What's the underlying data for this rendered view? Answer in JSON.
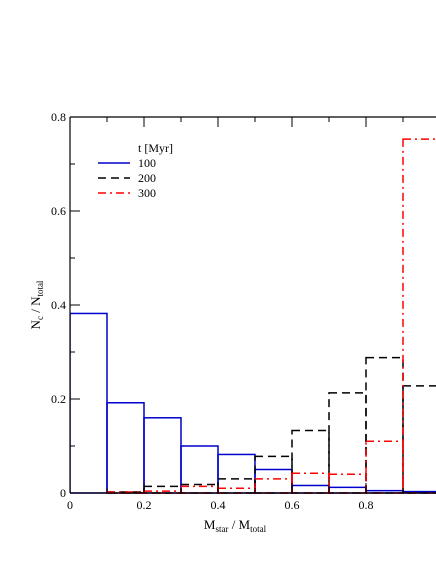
{
  "chart_data": {
    "type": "bar",
    "ylabel": {
      "main": "N",
      "sub1": "c",
      "sep": " / N",
      "sub2": "total"
    },
    "xlabel": {
      "main": "M",
      "sub1": "star",
      "sep": " / M",
      "sub2": "total"
    },
    "xlim": [
      0,
      1.0
    ],
    "ylim": [
      0,
      0.8
    ],
    "x_ticks": [
      {
        "value": 0,
        "label": "0"
      },
      {
        "value": 0.2,
        "label": "0.2"
      },
      {
        "value": 0.4,
        "label": "0.4"
      },
      {
        "value": 0.6,
        "label": "0.6"
      },
      {
        "value": 0.8,
        "label": "0.8"
      }
    ],
    "y_ticks": [
      {
        "value": 0,
        "label": "0"
      },
      {
        "value": 0.2,
        "label": "0.2"
      },
      {
        "value": 0.4,
        "label": "0.4"
      },
      {
        "value": 0.6,
        "label": "0.6"
      },
      {
        "value": 0.8,
        "label": "0.8"
      }
    ],
    "bin_edges": [
      0,
      0.1,
      0.2,
      0.3,
      0.4,
      0.5,
      0.6,
      0.7,
      0.8,
      0.9,
      1.0
    ],
    "legend": {
      "title": "t [Myr]",
      "placement": "top-left"
    },
    "series": [
      {
        "name": "100",
        "color": "#0000cc",
        "dash": "solid",
        "values": [
          0.382,
          0.192,
          0.16,
          0.1,
          0.082,
          0.05,
          0.016,
          0.012,
          0.005,
          0.003
        ]
      },
      {
        "name": "200",
        "color": "#000000",
        "dash": "dashed",
        "values": [
          0.0,
          0.002,
          0.014,
          0.018,
          0.03,
          0.078,
          0.133,
          0.213,
          0.288,
          0.228
        ]
      },
      {
        "name": "300",
        "color": "#ff0000",
        "dash": "dashdot",
        "values": [
          0.0,
          0.002,
          0.004,
          0.014,
          0.01,
          0.03,
          0.042,
          0.04,
          0.11,
          0.753
        ]
      }
    ]
  }
}
